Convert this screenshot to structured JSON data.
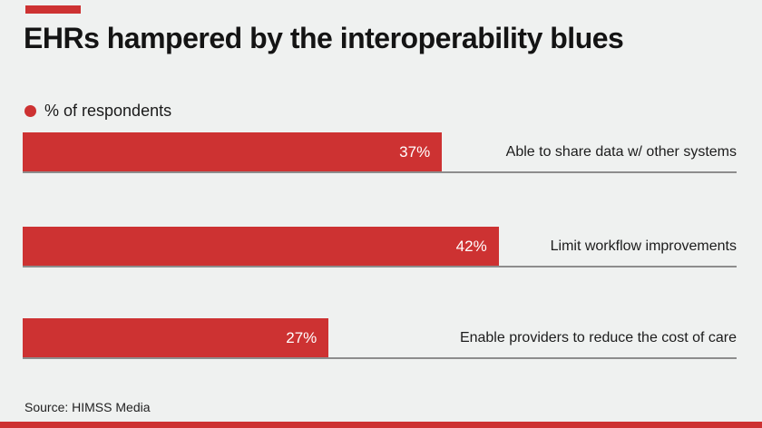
{
  "page": {
    "background_color": "#eff1f0",
    "accent_color": "#cd3232"
  },
  "header": {
    "title": "EHRs hampered by the interoperability blues"
  },
  "legend": {
    "label": "% of respondents",
    "dot_color": "#cd3232"
  },
  "chart_data": {
    "type": "bar",
    "orientation": "horizontal",
    "title": "EHRs hampered by the interoperability blues",
    "series_name": "% of respondents",
    "categories": [
      "Able to share data w/ other systems",
      "Limit workflow improvements",
      "Enable providers to reduce the cost of care"
    ],
    "values": [
      37,
      42,
      27
    ],
    "value_labels": [
      "37%",
      "42%",
      "27%"
    ],
    "xlabel": "",
    "ylabel": "",
    "xlim": [
      0,
      63
    ],
    "grid": false,
    "legend_position": "top-left",
    "bar_color": "#cd3232",
    "value_label_color": "#ffffff"
  },
  "footer": {
    "source": "Source: HIMSS Media"
  }
}
